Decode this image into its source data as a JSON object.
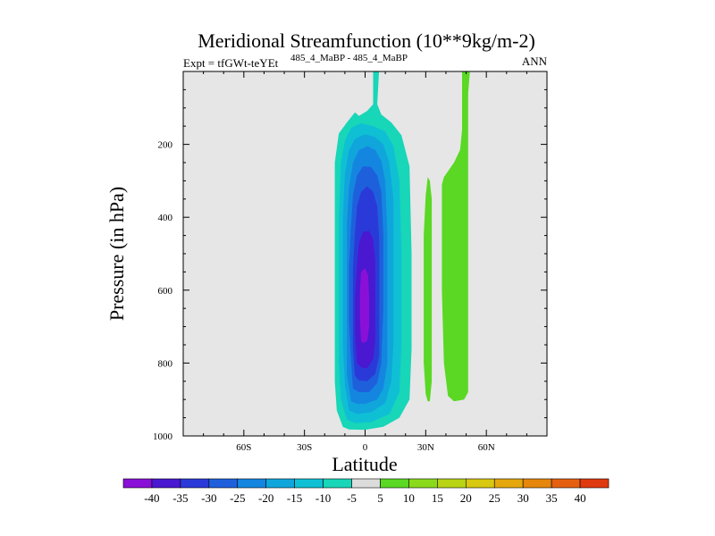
{
  "chart_data": {
    "type": "contour",
    "title": "Meridional Streamfunction (10**9kg/m-2)",
    "subtitle_left": "Expt = tfGWt-teYEt",
    "subtitle_sup": "485_4_MaBP - 485_4_MaBP",
    "subtitle_right": "ANN",
    "xlabel": "Latitude",
    "ylabel": "Pressure (in hPa)",
    "xlim": [
      -90,
      90
    ],
    "ylim": [
      1000,
      0
    ],
    "x_ticks": [
      {
        "value": -60,
        "label": "60S"
      },
      {
        "value": -30,
        "label": "30S"
      },
      {
        "value": 0,
        "label": "0"
      },
      {
        "value": 30,
        "label": "30N"
      },
      {
        "value": 60,
        "label": "60N"
      }
    ],
    "y_ticks": [
      {
        "value": 200,
        "label": "200"
      },
      {
        "value": 400,
        "label": "400"
      },
      {
        "value": 600,
        "label": "600"
      },
      {
        "value": 800,
        "label": "800"
      },
      {
        "value": 1000,
        "label": "1000"
      }
    ],
    "background_color": "#e6e6e6",
    "levels": [
      -40,
      -35,
      -30,
      -25,
      -20,
      -15,
      -10,
      -5,
      5,
      10,
      15,
      20,
      25,
      30,
      35,
      40
    ],
    "colorbar_colors": [
      "#8a10d8",
      "#4a18d0",
      "#2a3ad8",
      "#1e60dc",
      "#1486e0",
      "#10a6dc",
      "#0fc0d4",
      "#18d6b8",
      "#dcdcdc",
      "#5ad824",
      "#8ada1c",
      "#b8d414",
      "#d8c810",
      "#e4a80e",
      "#e6860c",
      "#e46010",
      "#e03a10"
    ],
    "regions": [
      {
        "name": "negative-cell-outer",
        "level": -5,
        "color": "#18d6b8",
        "polygon": [
          [
            -11,
            975
          ],
          [
            -14,
            930
          ],
          [
            -15,
            850
          ],
          [
            -15,
            700
          ],
          [
            -15,
            450
          ],
          [
            -15,
            250
          ],
          [
            -13,
            170
          ],
          [
            -9,
            140
          ],
          [
            -5,
            112
          ],
          [
            -3,
            122
          ],
          [
            1,
            108
          ],
          [
            4,
            90
          ],
          [
            4,
            -10
          ],
          [
            7,
            -10
          ],
          [
            6,
            90
          ],
          [
            8,
            118
          ],
          [
            13,
            140
          ],
          [
            18,
            175
          ],
          [
            22,
            260
          ],
          [
            23,
            500
          ],
          [
            23,
            760
          ],
          [
            22,
            900
          ],
          [
            17,
            950
          ],
          [
            9,
            975
          ],
          [
            0,
            983
          ],
          [
            -8,
            982
          ]
        ]
      },
      {
        "name": "negative-cell-10",
        "level": -10,
        "color": "#0fc0d4",
        "polygon": [
          [
            -9,
            955
          ],
          [
            -12,
            900
          ],
          [
            -13,
            800
          ],
          [
            -13,
            600
          ],
          [
            -13,
            400
          ],
          [
            -12,
            250
          ],
          [
            -10,
            190
          ],
          [
            -7,
            155
          ],
          [
            -2,
            142
          ],
          [
            4,
            150
          ],
          [
            10,
            165
          ],
          [
            14,
            205
          ],
          [
            17,
            300
          ],
          [
            18,
            500
          ],
          [
            18,
            750
          ],
          [
            17,
            880
          ],
          [
            12,
            940
          ],
          [
            3,
            962
          ],
          [
            -5,
            965
          ]
        ]
      },
      {
        "name": "negative-cell-15",
        "level": -15,
        "color": "#10a6dc",
        "polygon": [
          [
            -8,
            930
          ],
          [
            -10,
            860
          ],
          [
            -11,
            750
          ],
          [
            -11,
            550
          ],
          [
            -11,
            400
          ],
          [
            -10,
            280
          ],
          [
            -8,
            215
          ],
          [
            -5,
            185
          ],
          [
            0,
            172
          ],
          [
            5,
            180
          ],
          [
            9,
            200
          ],
          [
            12,
            250
          ],
          [
            14,
            350
          ],
          [
            14,
            550
          ],
          [
            14,
            750
          ],
          [
            13,
            850
          ],
          [
            10,
            910
          ],
          [
            3,
            935
          ],
          [
            -4,
            940
          ]
        ]
      },
      {
        "name": "negative-cell-20",
        "level": -20,
        "color": "#1486e0",
        "polygon": [
          [
            -7,
            905
          ],
          [
            -9,
            830
          ],
          [
            -9,
            700
          ],
          [
            -9,
            550
          ],
          [
            -9,
            420
          ],
          [
            -8,
            320
          ],
          [
            -6,
            250
          ],
          [
            -3,
            215
          ],
          [
            1,
            205
          ],
          [
            5,
            215
          ],
          [
            8,
            245
          ],
          [
            10,
            300
          ],
          [
            11,
            450
          ],
          [
            11,
            650
          ],
          [
            11,
            800
          ],
          [
            9,
            870
          ],
          [
            6,
            900
          ],
          [
            0,
            912
          ],
          [
            -4,
            912
          ]
        ]
      },
      {
        "name": "negative-cell-25",
        "level": -25,
        "color": "#1e60dc",
        "polygon": [
          [
            -6,
            870
          ],
          [
            -7,
            790
          ],
          [
            -8,
            680
          ],
          [
            -8,
            540
          ],
          [
            -7,
            430
          ],
          [
            -6,
            340
          ],
          [
            -4,
            285
          ],
          [
            -1,
            260
          ],
          [
            3,
            262
          ],
          [
            6,
            285
          ],
          [
            8,
            330
          ],
          [
            9,
            450
          ],
          [
            9,
            650
          ],
          [
            8,
            800
          ],
          [
            6,
            855
          ],
          [
            2,
            880
          ],
          [
            -3,
            880
          ]
        ]
      },
      {
        "name": "negative-cell-30",
        "level": -30,
        "color": "#2a3ad8",
        "polygon": [
          [
            -5,
            835
          ],
          [
            -6,
            760
          ],
          [
            -6,
            660
          ],
          [
            -6,
            540
          ],
          [
            -5,
            440
          ],
          [
            -4,
            370
          ],
          [
            -2,
            330
          ],
          [
            1,
            315
          ],
          [
            4,
            330
          ],
          [
            6,
            370
          ],
          [
            7,
            460
          ],
          [
            7,
            640
          ],
          [
            7,
            780
          ],
          [
            5,
            830
          ],
          [
            1,
            850
          ],
          [
            -3,
            848
          ]
        ]
      },
      {
        "name": "negative-cell-35",
        "level": -35,
        "color": "#4a18d0",
        "polygon": [
          [
            -4,
            800
          ],
          [
            -5,
            720
          ],
          [
            -5,
            620
          ],
          [
            -4,
            530
          ],
          [
            -3,
            470
          ],
          [
            -1,
            440
          ],
          [
            2,
            438
          ],
          [
            4,
            460
          ],
          [
            5,
            520
          ],
          [
            5,
            640
          ],
          [
            5,
            740
          ],
          [
            4,
            790
          ],
          [
            1,
            815
          ],
          [
            -2,
            812
          ]
        ]
      },
      {
        "name": "negative-cell-40",
        "level": -40,
        "color": "#8a10d8",
        "polygon": [
          [
            -2,
            740
          ],
          [
            -2.5,
            680
          ],
          [
            -2.5,
            600
          ],
          [
            -2,
            550
          ],
          [
            0,
            540
          ],
          [
            1.5,
            560
          ],
          [
            2,
            620
          ],
          [
            2,
            700
          ],
          [
            1,
            740
          ],
          [
            -1,
            745
          ]
        ]
      },
      {
        "name": "positive-thin-band",
        "level": 5,
        "color": "#5ad824",
        "polygon": [
          [
            30,
            885
          ],
          [
            29,
            800
          ],
          [
            29,
            600
          ],
          [
            29,
            450
          ],
          [
            30,
            340
          ],
          [
            31,
            290
          ],
          [
            32,
            300
          ],
          [
            33,
            350
          ],
          [
            33,
            500
          ],
          [
            33,
            700
          ],
          [
            33,
            850
          ],
          [
            32,
            905
          ],
          [
            31,
            905
          ]
        ]
      },
      {
        "name": "positive-main-band",
        "level": 5,
        "color": "#5ad824",
        "polygon": [
          [
            41,
            890
          ],
          [
            39,
            800
          ],
          [
            38,
            600
          ],
          [
            38,
            400
          ],
          [
            38,
            310
          ],
          [
            39,
            290
          ],
          [
            44,
            250
          ],
          [
            47,
            215
          ],
          [
            48,
            160
          ],
          [
            48,
            60
          ],
          [
            48,
            -10
          ],
          [
            52,
            -10
          ],
          [
            51,
            60
          ],
          [
            51,
            200
          ],
          [
            51,
            450
          ],
          [
            51,
            700
          ],
          [
            51,
            880
          ],
          [
            49,
            900
          ],
          [
            44,
            905
          ]
        ]
      }
    ]
  }
}
